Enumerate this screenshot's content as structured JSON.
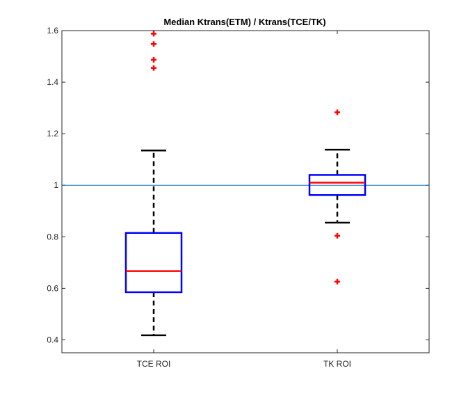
{
  "chart_data": {
    "type": "boxplot",
    "title": "Median Ktrans(ETM) / Ktrans(TCE/TK)",
    "xlabel": "",
    "ylabel": "",
    "ylim": [
      0.35,
      1.6
    ],
    "yticks": [
      0.4,
      0.6,
      0.8,
      1,
      1.2,
      1.4,
      1.6
    ],
    "ytick_labels": [
      "0.4",
      "0.6",
      "0.8",
      "1",
      "1.2",
      "1.4",
      "1.6"
    ],
    "categories": [
      "TCE ROI",
      "TK ROI"
    ],
    "boxes": [
      {
        "category": "TCE ROI",
        "whisker_low": 0.418,
        "q1": 0.585,
        "median": 0.667,
        "q3": 0.815,
        "whisker_high": 1.135,
        "outliers": [
          1.455,
          1.487,
          1.548,
          1.588
        ]
      },
      {
        "category": "TK ROI",
        "whisker_low": 0.855,
        "q1": 0.962,
        "median": 1.01,
        "q3": 1.04,
        "whisker_high": 1.138,
        "outliers": [
          0.626,
          0.804,
          1.283
        ]
      }
    ],
    "reference_line": 1,
    "grid": false,
    "colors": {
      "box": "#0000ff",
      "median": "#ff0000",
      "whisker": "#000000",
      "outlier": "#ff0000",
      "reference_line": "#0072bd",
      "axes": "#262626"
    }
  }
}
